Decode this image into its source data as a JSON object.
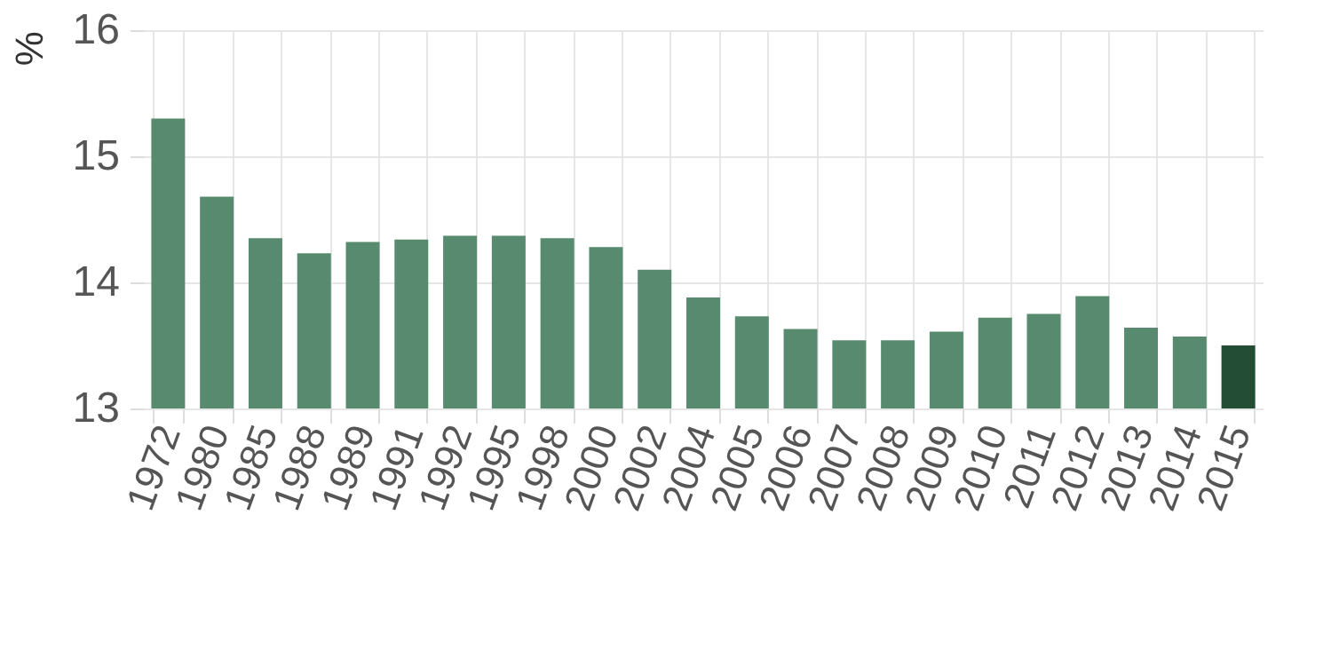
{
  "chart_data": {
    "type": "bar",
    "ylabel": "%",
    "categories": [
      "1972",
      "1980",
      "1985",
      "1988",
      "1989",
      "1991",
      "1992",
      "1995",
      "1998",
      "2000",
      "2002",
      "2004",
      "2005",
      "2006",
      "2007",
      "2008",
      "2009",
      "2010",
      "2011",
      "2012",
      "2013",
      "2014",
      "2015"
    ],
    "values": [
      15.3,
      14.68,
      14.35,
      14.23,
      14.32,
      14.34,
      14.37,
      14.37,
      14.35,
      14.28,
      14.1,
      13.88,
      13.73,
      13.63,
      13.54,
      13.54,
      13.61,
      13.72,
      13.75,
      13.89,
      13.64,
      13.57,
      13.5
    ],
    "colors": [
      "#578a6e",
      "#578a6e",
      "#578a6e",
      "#578a6e",
      "#578a6e",
      "#578a6e",
      "#578a6e",
      "#578a6e",
      "#578a6e",
      "#578a6e",
      "#578a6e",
      "#578a6e",
      "#578a6e",
      "#578a6e",
      "#578a6e",
      "#578a6e",
      "#578a6e",
      "#578a6e",
      "#578a6e",
      "#578a6e",
      "#578a6e",
      "#578a6e",
      "#234d34"
    ],
    "ylim": [
      13,
      16
    ],
    "yticks": [
      13,
      14,
      15,
      16
    ],
    "grid": true
  }
}
